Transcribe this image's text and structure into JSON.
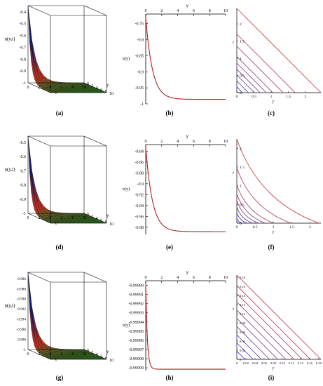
{
  "chart_data": [
    {
      "id": "a",
      "type": "surface3d",
      "caption": "(a)",
      "zlabel": "u(y,t)",
      "xlabel": "t",
      "ylabel": "y",
      "zticks": [
        "-0.4",
        "-0.5",
        "-0.6",
        "-0.7",
        "-0.8",
        "-0.9",
        "-1"
      ],
      "t_ticks": [
        "0",
        "2",
        "4",
        "6",
        "8",
        "10"
      ],
      "y_ticks": [
        "0",
        "2",
        "4",
        "6",
        "8",
        "10"
      ],
      "zlim": [
        -1,
        -0.4
      ],
      "peak": -0.4
    },
    {
      "id": "b",
      "type": "line",
      "caption": "(b)",
      "xlabel": "y",
      "ylabel": "u(y)",
      "xticks": [
        "0",
        "2",
        "4",
        "6",
        "8",
        "10"
      ],
      "yticks": [
        "-0.75",
        "-0.8",
        "-0.85",
        "-0.9",
        "-0.95",
        "-1"
      ],
      "ytick_values": [
        -0.75,
        -0.8,
        -0.85,
        -0.9,
        -0.95,
        -1
      ],
      "xlim": [
        0,
        10
      ],
      "ylim": [
        -1,
        -0.72
      ],
      "series": [
        {
          "start": -0.73,
          "end": -0.986,
          "decay": 1.2,
          "color": "#b22222"
        }
      ]
    },
    {
      "id": "c",
      "type": "contour",
      "caption": "(c)",
      "xlabel": "y",
      "ylabel": "t",
      "xticks": [
        "0",
        "0.5",
        "1",
        "1.5",
        "2"
      ],
      "xtick_values": [
        0,
        0.5,
        1,
        1.5,
        2
      ],
      "yticks": [
        "0",
        "0.5",
        "1",
        "1.5",
        "2"
      ],
      "ytick_values": [
        0,
        0.5,
        1,
        1.5,
        2
      ],
      "xlim": [
        0,
        2.45
      ],
      "ylim": [
        0,
        2.45
      ],
      "levels": [
        0.17,
        0.34,
        0.51,
        0.68,
        0.86,
        1.05,
        1.35,
        1.7,
        2.45
      ],
      "curvature": 0
    },
    {
      "id": "d",
      "type": "surface3d",
      "caption": "(d)",
      "zlabel": "u(y,t)",
      "xlabel": "t",
      "ylabel": "y",
      "zticks": [
        "-0.5",
        "-0.6",
        "-0.7",
        "-0.8",
        "-0.9",
        "-1"
      ],
      "t_ticks": [
        "0",
        "2",
        "4",
        "6",
        "8",
        "10"
      ],
      "y_ticks": [
        "0",
        "2",
        "4",
        "6",
        "8",
        "10"
      ],
      "zlim": [
        -1,
        -0.45
      ],
      "peak": -0.45
    },
    {
      "id": "e",
      "type": "line",
      "caption": "(e)",
      "xlabel": "y",
      "ylabel": "u(y)",
      "xticks": [
        "0",
        "2",
        "4",
        "6",
        "8",
        "10"
      ],
      "yticks": [
        "-0.84",
        "-0.86",
        "-0.88",
        "-0.9",
        "-0.92",
        "-0.94",
        "-0.96",
        "-0.98"
      ],
      "ytick_values": [
        -0.84,
        -0.86,
        -0.88,
        -0.9,
        -0.92,
        -0.94,
        -0.96,
        -0.98
      ],
      "xlim": [
        0,
        10
      ],
      "ylim": [
        -0.993,
        -0.828
      ],
      "series": [
        {
          "start": -0.832,
          "end": -0.988,
          "decay": 1.2,
          "color": "#b22222"
        }
      ]
    },
    {
      "id": "f",
      "type": "contour",
      "caption": "(f)",
      "xlabel": "y",
      "ylabel": "t",
      "xticks": [
        "0",
        "0.5",
        "1",
        "1.5",
        "2"
      ],
      "xtick_values": [
        0,
        0.5,
        1,
        1.5,
        2
      ],
      "yticks": [
        "0",
        "0.5",
        "1",
        "1.5",
        "2"
      ],
      "ytick_values": [
        0,
        0.5,
        1,
        1.5,
        2
      ],
      "xlim": [
        0,
        2.3
      ],
      "ylim": [
        0,
        2.25
      ],
      "levels": [
        0.13,
        0.28,
        0.43,
        0.6,
        0.78,
        1.02,
        1.48,
        2.25
      ],
      "curvature": 0.12
    },
    {
      "id": "g",
      "type": "surface3d",
      "caption": "(g)",
      "zlabel": "u(y,t)",
      "xlabel": "t",
      "ylabel": "y",
      "zticks": [
        "-0.986",
        "-0.988",
        "-0.990",
        "-0.992",
        "-0.994",
        "-0.996",
        "-0.998",
        "-1"
      ],
      "t_ticks": [
        "0",
        "2",
        "4",
        "6",
        "8",
        "10"
      ],
      "y_ticks": [
        "0",
        "2",
        "4",
        "6",
        "8",
        "10"
      ],
      "zlim": [
        -1,
        -0.985
      ],
      "peak": -0.985
    },
    {
      "id": "h",
      "type": "line",
      "caption": "(h)",
      "xlabel": "y",
      "ylabel": "u(y)",
      "xticks": [
        "0",
        "2",
        "4",
        "6",
        "8",
        "10"
      ],
      "yticks": [
        "-0.99990",
        "-0.99991",
        "-0.99992",
        "-0.99993",
        "-0.99994",
        "-0.99995",
        "-0.99996",
        "-0.99997",
        "-0.99998",
        "-0.99999"
      ],
      "ytick_values": [
        -0.9999,
        -0.99991,
        -0.99992,
        -0.99993,
        -0.99994,
        -0.99995,
        -0.99996,
        -0.99997,
        -0.99998,
        -0.99999
      ],
      "xlim": [
        0,
        10
      ],
      "ylim": [
        -0.999993,
        -0.999895
      ],
      "series": [
        {
          "start": -0.999898,
          "end": -0.9999915,
          "decay": 5,
          "color": "#b22222"
        }
      ]
    },
    {
      "id": "i",
      "type": "contour",
      "caption": "(i)",
      "xlabel": "y",
      "ylabel": "t",
      "xticks": [
        "0",
        "0.02",
        "0.04",
        "0.06",
        "0.08",
        "0.10",
        "0.12",
        "0.14",
        "0.16",
        "0.18"
      ],
      "xtick_values": [
        0,
        0.02,
        0.04,
        0.06,
        0.08,
        0.1,
        0.12,
        0.14,
        0.16,
        0.18
      ],
      "yticks": [
        "0",
        "0.02",
        "0.04",
        "0.06",
        "0.08",
        "0.10",
        "0.12",
        "0.14",
        "0.16",
        "0.18"
      ],
      "ytick_values": [
        0,
        0.02,
        0.04,
        0.06,
        0.08,
        0.1,
        0.12,
        0.14,
        0.16,
        0.18
      ],
      "xlim": [
        0,
        0.185
      ],
      "ylim": [
        0,
        0.185
      ],
      "levels": [
        0.018,
        0.036,
        0.054,
        0.072,
        0.09,
        0.108,
        0.126,
        0.144,
        0.162,
        0.185
      ],
      "curvature": 0
    }
  ],
  "colors": {
    "line": "#b22222",
    "contour_high": "#cc3333",
    "contour_low": "#3333cc",
    "surface_peak": "#1a1a6e",
    "surface_mid": "#c03020",
    "surface_low": "#30a030"
  }
}
